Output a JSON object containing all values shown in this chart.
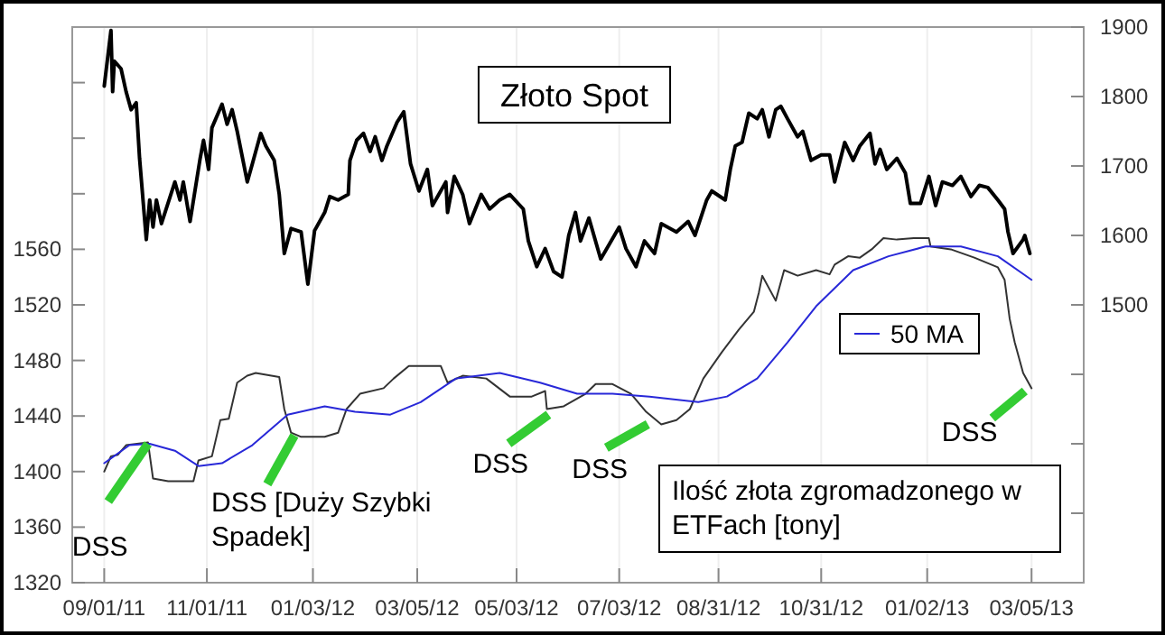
{
  "chart_data": {
    "type": "line",
    "title": "Złoto Spot",
    "xlim": [
      "2011-08-13",
      "2013-04-05"
    ],
    "xticks": [
      {
        "value": "2011-09-01",
        "label": "09/01/11"
      },
      {
        "value": "2011-11-01",
        "label": "11/01/11"
      },
      {
        "value": "2012-01-03",
        "label": "01/03/12"
      },
      {
        "value": "2012-03-05",
        "label": "03/05/12"
      },
      {
        "value": "2012-05-03",
        "label": "05/03/12"
      },
      {
        "value": "2012-07-03",
        "label": "07/03/12"
      },
      {
        "value": "2012-08-31",
        "label": "08/31/12"
      },
      {
        "value": "2012-10-31",
        "label": "10/31/12"
      },
      {
        "value": "2013-01-02",
        "label": "01/02/13"
      },
      {
        "value": "2013-03-05",
        "label": "03/05/13"
      }
    ],
    "ylim": [
      1320,
      1720
    ],
    "yticks": [
      1320,
      1360,
      1400,
      1440,
      1480,
      1520,
      1560,
      {
        "value": 1600,
        "label": null
      },
      {
        "value": 1640,
        "label": null
      },
      {
        "value": 1680,
        "label": null
      }
    ],
    "y2lim": [
      1100,
      1900
    ],
    "y2ticks": [
      {
        "value": 1200,
        "label": null
      },
      {
        "value": 1300,
        "label": null
      },
      {
        "value": 1400,
        "label": null
      },
      1500,
      1600,
      1700,
      1800,
      1900
    ],
    "grid": "x",
    "legend": "right",
    "series": [
      {
        "color": "#000000",
        "axis": "y2",
        "x": [
          "2011-09-01",
          "2011-09-05",
          "2011-09-06",
          "2011-09-07",
          "2011-09-11",
          "2011-09-14",
          "2011-09-17",
          "2011-09-20",
          "2011-09-22",
          "2011-09-26",
          "2011-09-28",
          "2011-09-30",
          "2011-10-02",
          "2011-10-05",
          "2011-10-13",
          "2011-10-16",
          "2011-10-18",
          "2011-10-22",
          "2011-10-28",
          "2011-10-30",
          "2011-11-02",
          "2011-11-04",
          "2011-11-10",
          "2011-11-13",
          "2011-11-16",
          "2011-11-19",
          "2011-11-25",
          "2011-11-28",
          "2011-12-03",
          "2011-12-06",
          "2011-12-11",
          "2011-12-14",
          "2011-12-17",
          "2011-12-21",
          "2011-12-27",
          "2011-12-31",
          "2012-01-04",
          "2012-01-10",
          "2012-01-13",
          "2012-01-18",
          "2012-01-24",
          "2012-01-25",
          "2012-01-29",
          "2012-02-02",
          "2012-02-06",
          "2012-02-09",
          "2012-02-13",
          "2012-02-16",
          "2012-02-22",
          "2012-02-26",
          "2012-03-01",
          "2012-03-06",
          "2012-03-11",
          "2012-03-14",
          "2012-03-22",
          "2012-03-23",
          "2012-03-27",
          "2012-04-01",
          "2012-04-05",
          "2012-04-12",
          "2012-04-17",
          "2012-04-23",
          "2012-04-29",
          "2012-05-07",
          "2012-05-10",
          "2012-05-15",
          "2012-05-20",
          "2012-05-25",
          "2012-05-30",
          "2012-06-03",
          "2012-06-07",
          "2012-06-10",
          "2012-06-15",
          "2012-06-22",
          "2012-07-03",
          "2012-07-07",
          "2012-07-13",
          "2012-07-18",
          "2012-07-24",
          "2012-07-28",
          "2012-08-06",
          "2012-08-13",
          "2012-08-17",
          "2012-08-24",
          "2012-08-27",
          "2012-09-04",
          "2012-09-07",
          "2012-09-10",
          "2012-09-14",
          "2012-09-18",
          "2012-09-23",
          "2012-09-26",
          "2012-09-30",
          "2012-10-04",
          "2012-10-07",
          "2012-10-11",
          "2012-10-17",
          "2012-10-20",
          "2012-10-25",
          "2012-10-31",
          "2012-11-05",
          "2012-11-08",
          "2012-11-14",
          "2012-11-19",
          "2012-11-23",
          "2012-11-29",
          "2012-12-02",
          "2012-12-05",
          "2012-12-09",
          "2012-12-15",
          "2012-12-20",
          "2012-12-23",
          "2012-12-29",
          "2013-01-03",
          "2013-01-07",
          "2013-01-11",
          "2013-01-17",
          "2013-01-22",
          "2013-01-28",
          "2013-02-02",
          "2013-02-07",
          "2013-02-13",
          "2013-02-17",
          "2013-02-19",
          "2013-02-22",
          "2013-02-28",
          "2013-03-01",
          "2013-03-04"
        ],
        "values": [
          1815,
          1895,
          1807,
          1851,
          1840,
          1807,
          1781,
          1791,
          1711,
          1594,
          1651,
          1612,
          1651,
          1617,
          1677,
          1651,
          1677,
          1620,
          1711,
          1737,
          1695,
          1755,
          1789,
          1760,
          1781,
          1750,
          1677,
          1703,
          1747,
          1729,
          1708,
          1659,
          1574,
          1610,
          1605,
          1530,
          1607,
          1633,
          1656,
          1651,
          1659,
          1708,
          1737,
          1747,
          1721,
          1742,
          1708,
          1729,
          1763,
          1778,
          1703,
          1664,
          1695,
          1643,
          1677,
          1633,
          1685,
          1659,
          1617,
          1659,
          1638,
          1651,
          1659,
          1638,
          1592,
          1555,
          1581,
          1548,
          1540,
          1600,
          1633,
          1592,
          1625,
          1566,
          1612,
          1581,
          1555,
          1592,
          1574,
          1617,
          1605,
          1620,
          1600,
          1651,
          1664,
          1651,
          1695,
          1729,
          1734,
          1776,
          1768,
          1781,
          1742,
          1781,
          1786,
          1768,
          1742,
          1750,
          1708,
          1716,
          1716,
          1677,
          1734,
          1708,
          1729,
          1747,
          1703,
          1724,
          1695,
          1711,
          1690,
          1646,
          1646,
          1685,
          1643,
          1677,
          1672,
          1685,
          1656,
          1672,
          1669,
          1651,
          1638,
          1605,
          1574,
          1594,
          1600,
          1574
        ]
      },
      {
        "color": "#333333",
        "x": [
          "2011-09-01",
          "2011-09-05",
          "2011-09-09",
          "2011-09-14",
          "2011-09-27",
          "2011-09-30",
          "2011-10-09",
          "2011-10-24",
          "2011-10-27",
          "2011-11-04",
          "2011-11-09",
          "2011-11-14",
          "2011-11-19",
          "2011-11-25",
          "2011-11-30",
          "2011-12-14",
          "2011-12-17",
          "2011-12-21",
          "2011-12-27",
          "2012-01-10",
          "2012-01-18",
          "2012-01-23",
          "2012-01-31",
          "2012-02-14",
          "2012-02-20",
          "2012-02-29",
          "2012-03-19",
          "2012-03-23",
          "2012-04-01",
          "2012-04-15",
          "2012-04-29",
          "2012-05-12",
          "2012-05-20",
          "2012-05-21",
          "2012-05-31",
          "2012-06-13",
          "2012-06-19",
          "2012-06-29",
          "2012-07-10",
          "2012-07-19",
          "2012-07-28",
          "2012-08-06",
          "2012-08-14",
          "2012-08-22",
          "2012-09-02",
          "2012-09-12",
          "2012-09-21",
          "2012-09-24",
          "2012-09-26",
          "2012-10-04",
          "2012-10-09",
          "2012-10-17",
          "2012-10-28",
          "2012-11-05",
          "2012-11-08",
          "2012-11-16",
          "2012-11-23",
          "2012-11-30",
          "2012-12-07",
          "2012-12-15",
          "2012-12-25",
          "2013-01-03",
          "2013-01-04",
          "2013-01-16",
          "2013-01-30",
          "2013-02-13",
          "2013-02-17",
          "2013-02-20",
          "2013-02-23",
          "2013-02-28",
          "2013-03-05"
        ],
        "values": [
          1400,
          1411,
          1412,
          1419,
          1421,
          1395,
          1393,
          1393,
          1408,
          1411,
          1437,
          1438,
          1464,
          1469,
          1471,
          1468,
          1445,
          1428,
          1425,
          1425,
          1428,
          1445,
          1456,
          1460,
          1467,
          1476,
          1476,
          1464,
          1469,
          1467,
          1454,
          1454,
          1458,
          1445,
          1447,
          1456,
          1463,
          1463,
          1456,
          1443,
          1434,
          1437,
          1445,
          1467,
          1486,
          1502,
          1515,
          1529,
          1541,
          1523,
          1545,
          1541,
          1545,
          1542,
          1549,
          1555,
          1554,
          1560,
          1568,
          1567,
          1568,
          1568,
          1562,
          1560,
          1554,
          1547,
          1538,
          1510,
          1493,
          1471,
          1460
        ]
      },
      {
        "name": "50 MA",
        "color": "#2828d8",
        "x": [
          "2011-09-01",
          "2011-09-16",
          "2011-09-28",
          "2011-10-13",
          "2011-10-27",
          "2011-11-10",
          "2011-11-28",
          "2011-12-19",
          "2012-01-10",
          "2012-01-28",
          "2012-02-18",
          "2012-03-07",
          "2012-03-28",
          "2012-04-23",
          "2012-05-17",
          "2012-06-08",
          "2012-06-29",
          "2012-07-21",
          "2012-08-19",
          "2012-09-05",
          "2012-09-23",
          "2012-10-11",
          "2012-10-28",
          "2012-11-19",
          "2012-12-10",
          "2013-01-01",
          "2013-01-22",
          "2013-02-13",
          "2013-03-05"
        ],
        "values": [
          1406,
          1419,
          1420,
          1415,
          1404,
          1406,
          1419,
          1441,
          1447,
          1443,
          1441,
          1450,
          1467,
          1471,
          1464,
          1456,
          1456,
          1454,
          1450,
          1454,
          1467,
          1493,
          1519,
          1545,
          1555,
          1562,
          1562,
          1555,
          1538
        ]
      }
    ],
    "annotations": [
      {
        "text": "DSS",
        "x": "2011-09-27",
        "y": 1420
      },
      {
        "text": "DSS [Duży Szybki Spadek]",
        "x": "2011-12-23",
        "y": 1426
      },
      {
        "text": "DSS",
        "x": "2012-05-22",
        "y": 1441
      },
      {
        "text": "DSS",
        "x": "2012-07-20",
        "y": 1434
      },
      {
        "text": "DSS",
        "x": "2013-03-01",
        "y": 1458
      },
      "Ilość złota zgromadzonego w ETFach [tony]"
    ]
  }
}
